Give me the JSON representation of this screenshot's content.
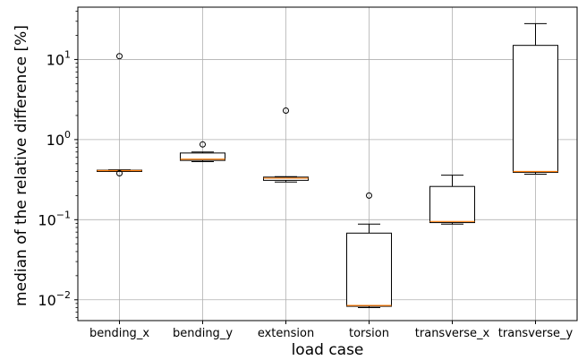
{
  "chart_data": {
    "type": "box",
    "xlabel": "load case",
    "ylabel": "median of the relative difference [%]",
    "yscale": "log",
    "ylim": [
      0.0055,
      45
    ],
    "grid": true,
    "categories": [
      "bending_x",
      "bending_y",
      "extension",
      "torsion",
      "transverse_x",
      "transverse_y"
    ],
    "boxes": [
      {
        "whisker_low": 0.4,
        "q1": 0.4,
        "median": 0.41,
        "q3": 0.415,
        "whisker_high": 0.42,
        "outliers": [
          11.0,
          0.38
        ]
      },
      {
        "whisker_low": 0.53,
        "q1": 0.55,
        "median": 0.57,
        "q3": 0.68,
        "whisker_high": 0.7,
        "outliers": [
          0.87
        ]
      },
      {
        "whisker_low": 0.295,
        "q1": 0.31,
        "median": 0.33,
        "q3": 0.34,
        "whisker_high": 0.345,
        "outliers": [
          2.3
        ]
      },
      {
        "whisker_low": 0.008,
        "q1": 0.0083,
        "median": 0.0085,
        "q3": 0.068,
        "whisker_high": 0.088,
        "outliers": [
          0.2
        ]
      },
      {
        "whisker_low": 0.088,
        "q1": 0.092,
        "median": 0.095,
        "q3": 0.26,
        "whisker_high": 0.36,
        "outliers": []
      },
      {
        "whisker_low": 0.37,
        "q1": 0.39,
        "median": 0.4,
        "q3": 15.0,
        "whisker_high": 28.0,
        "outliers": []
      }
    ],
    "yticks": [
      {
        "value": 0.01,
        "base": "10",
        "exp": "−2"
      },
      {
        "value": 0.1,
        "base": "10",
        "exp": "−1"
      },
      {
        "value": 1,
        "base": "10",
        "exp": "0"
      },
      {
        "value": 10,
        "base": "10",
        "exp": "1"
      }
    ],
    "colors": {
      "box": "#000000",
      "median": "#ff7f0e",
      "grid": "#b0b0b0"
    }
  }
}
